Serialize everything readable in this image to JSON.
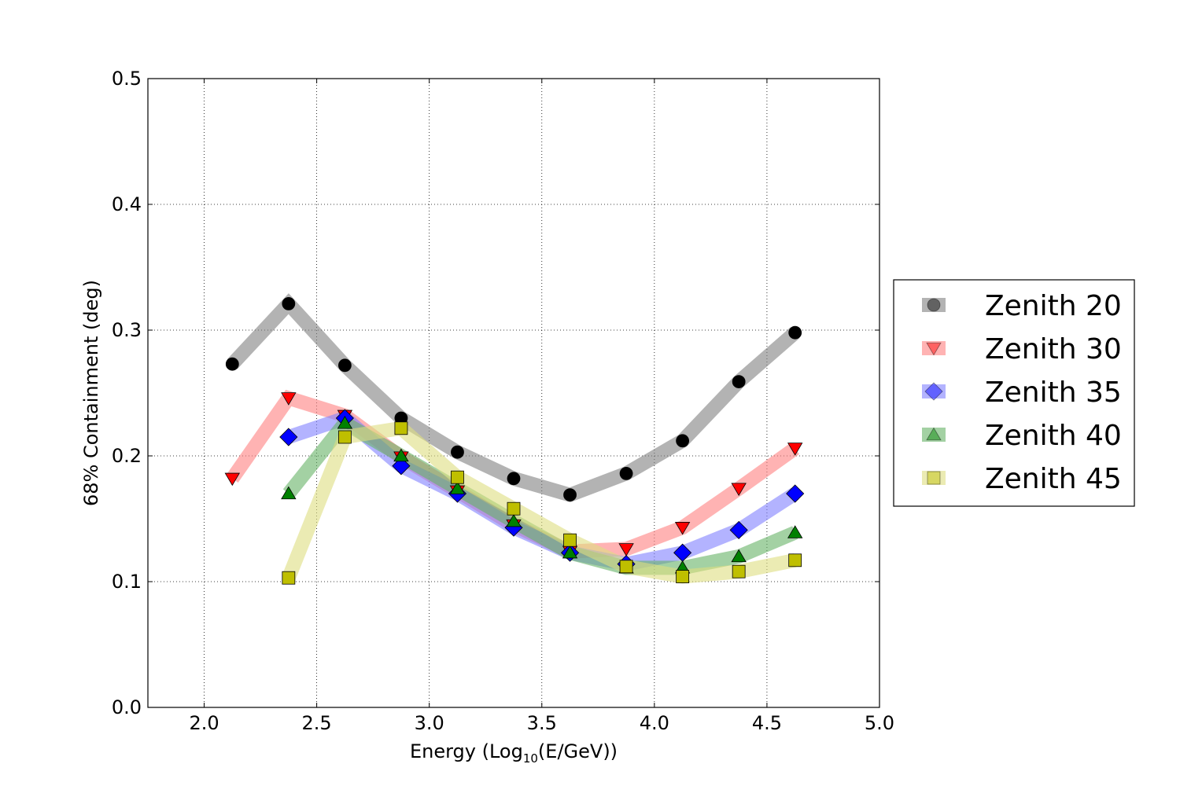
{
  "chart_data": {
    "type": "line",
    "title": "",
    "xlabel_prefix": "Energy (Log",
    "xlabel_sub": "10",
    "xlabel_suffix": "(E/GeV))",
    "ylabel": "68% Containment (deg)",
    "xlim": [
      1.75,
      5.0
    ],
    "ylim": [
      0.0,
      0.5
    ],
    "xticks": [
      "2.0",
      "2.5",
      "3.0",
      "3.5",
      "4.0",
      "4.5",
      "5.0"
    ],
    "xtick_values": [
      2.0,
      2.5,
      3.0,
      3.5,
      4.0,
      4.5,
      5.0
    ],
    "yticks": [
      "0.0",
      "0.1",
      "0.2",
      "0.3",
      "0.4",
      "0.5"
    ],
    "ytick_values": [
      0.0,
      0.1,
      0.2,
      0.3,
      0.4,
      0.5
    ],
    "grid": true,
    "legend_position": "right",
    "series": [
      {
        "name": "Zenith 20",
        "marker": "circle",
        "color": "#000000",
        "band_color": "#808080",
        "x": [
          2.125,
          2.375,
          2.625,
          2.875,
          3.125,
          3.375,
          3.625,
          3.875,
          4.125,
          4.375,
          4.625
        ],
        "y": [
          0.273,
          0.321,
          0.272,
          0.23,
          0.203,
          0.182,
          0.169,
          0.186,
          0.212,
          0.259,
          0.298
        ]
      },
      {
        "name": "Zenith 30",
        "marker": "triangle-down",
        "color": "#ff0000",
        "band_color": "#ff8080",
        "x": [
          2.125,
          2.375,
          2.625,
          2.875,
          3.125,
          3.375,
          3.625,
          3.875,
          4.125,
          4.375,
          4.625
        ],
        "y": [
          0.182,
          0.246,
          0.232,
          0.199,
          0.172,
          0.145,
          0.124,
          0.126,
          0.143,
          0.174,
          0.206
        ]
      },
      {
        "name": "Zenith 35",
        "marker": "diamond",
        "color": "#0000ff",
        "band_color": "#8080ff",
        "x": [
          2.375,
          2.625,
          2.875,
          3.125,
          3.375,
          3.625,
          3.875,
          4.125,
          4.375,
          4.625
        ],
        "y": [
          0.215,
          0.23,
          0.192,
          0.17,
          0.143,
          0.123,
          0.114,
          0.123,
          0.141,
          0.17
        ]
      },
      {
        "name": "Zenith 40",
        "marker": "triangle-up",
        "color": "#008000",
        "band_color": "#66b366",
        "x": [
          2.375,
          2.625,
          2.875,
          3.125,
          3.375,
          3.625,
          3.875,
          4.125,
          4.375,
          4.625
        ],
        "y": [
          0.17,
          0.226,
          0.2,
          0.174,
          0.148,
          0.123,
          0.111,
          0.111,
          0.12,
          0.139
        ]
      },
      {
        "name": "Zenith 45",
        "marker": "square",
        "color": "#bfbf00",
        "band_color": "#dede80",
        "x": [
          2.375,
          2.625,
          2.875,
          3.125,
          3.375,
          3.625,
          3.875,
          4.125,
          4.375,
          4.625
        ],
        "y": [
          0.103,
          0.215,
          0.222,
          0.183,
          0.158,
          0.133,
          0.112,
          0.104,
          0.108,
          0.117
        ]
      }
    ]
  }
}
